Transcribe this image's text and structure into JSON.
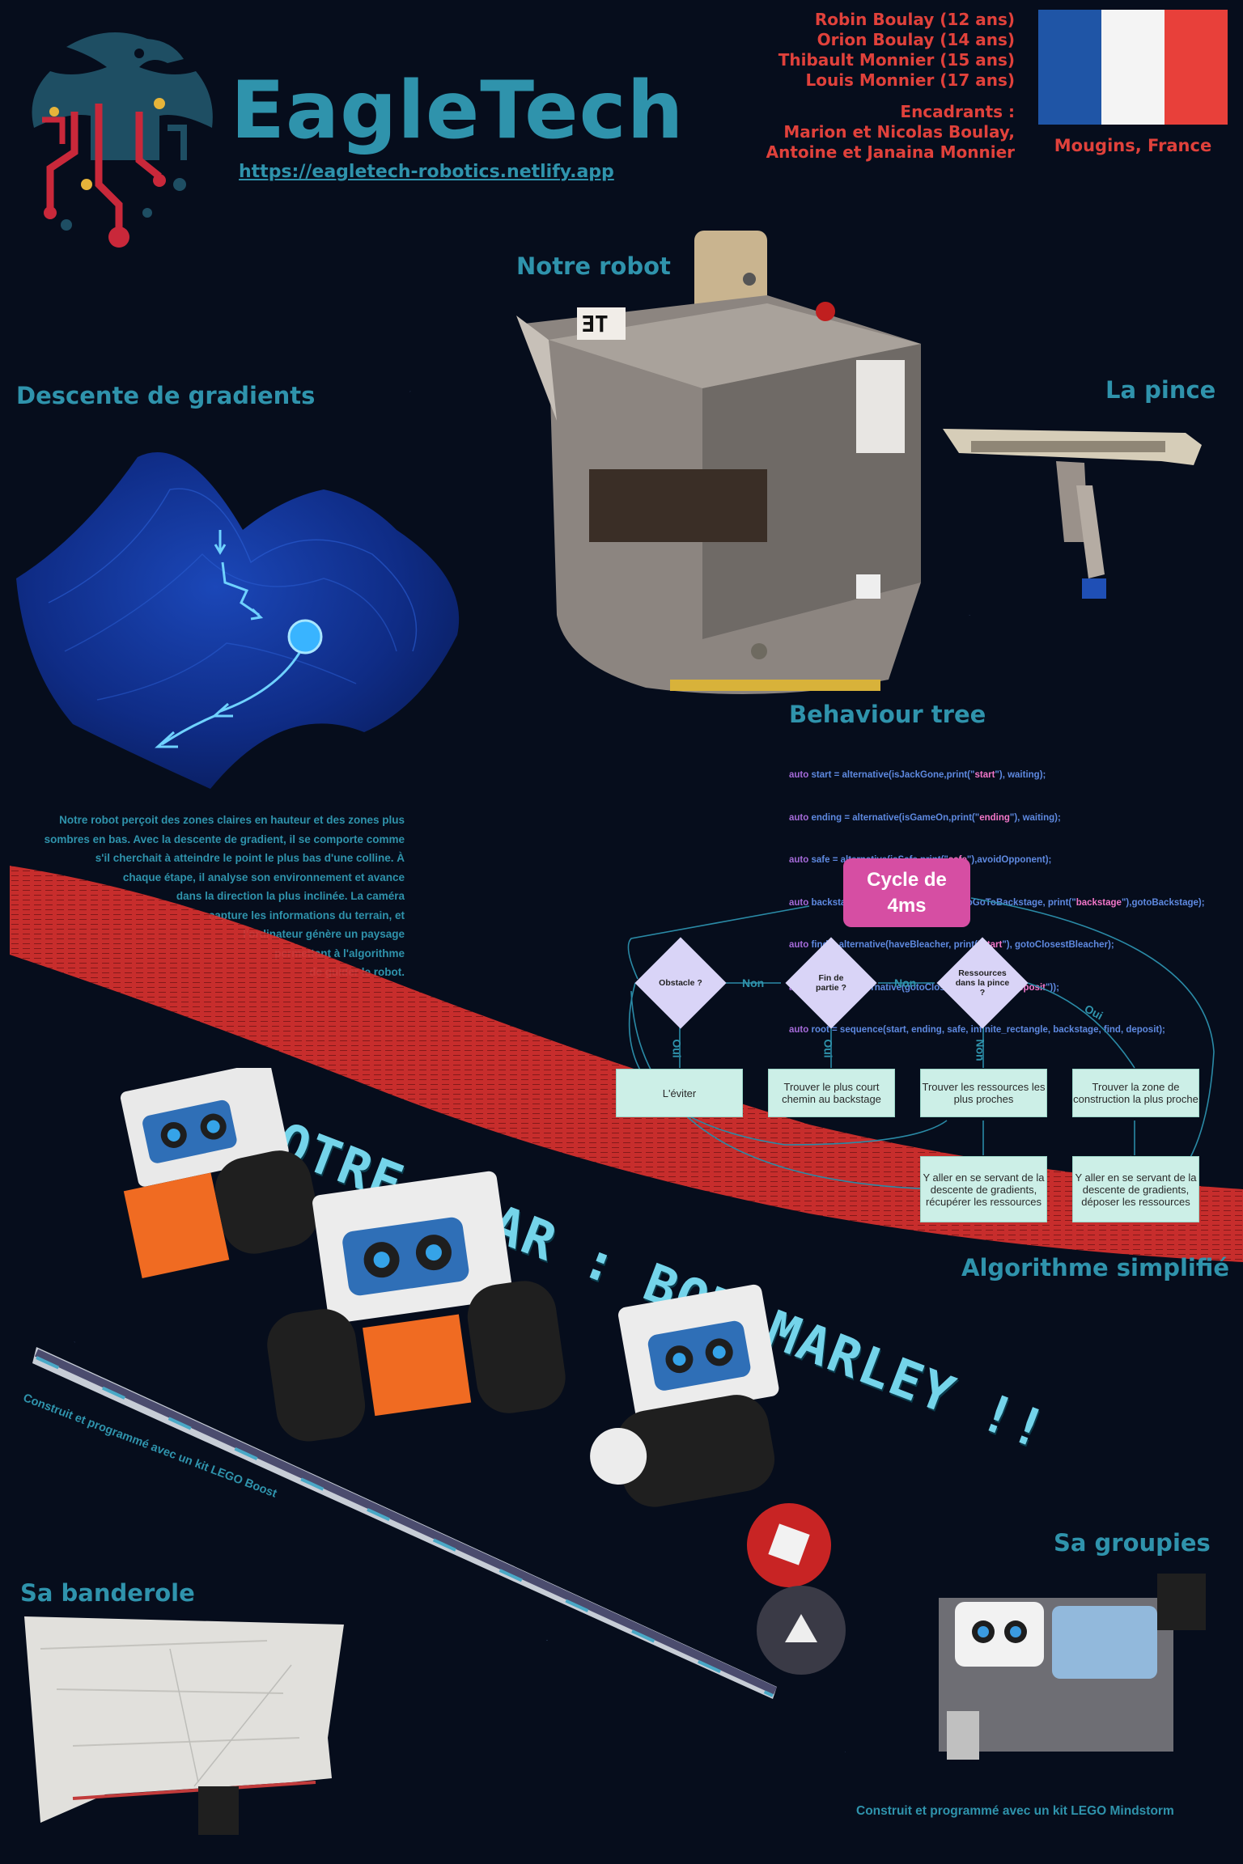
{
  "brand": {
    "name": "EagleTech",
    "website": "https://eagletech-robotics.netlify.app"
  },
  "team": {
    "members": [
      "Robin Boulay (12 ans)",
      "Orion Boulay (14 ans)",
      "Thibault Monnier (15 ans)",
      "Louis Monnier (17 ans)"
    ],
    "supervisors_title": "Encadrants :",
    "supervisors": [
      "Marion et Nicolas Boulay,",
      "Antoine et Janaina Monnier"
    ],
    "location": "Mougins, France"
  },
  "flag_colors": [
    "#1f55a6",
    "#f4f4f4",
    "#e8403a"
  ],
  "sections": {
    "robot": "Notre robot",
    "gradient": "Descente de gradients",
    "pince": "La pince",
    "behaviour": "Behaviour tree",
    "algo": "Algorithme simplifié",
    "groupies": "Sa groupies",
    "banderole": "Sa banderole"
  },
  "gradient_text": [
    "Notre robot perçoit des zones claires en hauteur et des zones plus",
    "sombres en bas. Avec la descente de gradient, il se comporte comme",
    "s'il cherchait à atteindre le point le plus bas d'une colline.  À",
    "chaque étape, il analyse son environnement et avance",
    "dans la direction la plus inclinée. La caméra",
    "capture les informations du terrain, et",
    "l'ordinateur génère un paysage",
    "permettant à l'algorithme",
    "de guider le robot."
  ],
  "code_lines": [
    {
      "kw": "auto",
      "a": " start = alternative(isJackGone,print(\"",
      "s": "start",
      "b": "\"), waiting);"
    },
    {
      "kw": "auto",
      "a": " ending = alternative(isGameOn,print(\"",
      "s": "ending",
      "b": "\"), waiting);"
    },
    {
      "kw": "auto",
      "a": " safe = alternative(isSafe,print(\"",
      "s": "safe",
      "b": "\"),avoidOpponent);"
    },
    {
      "kw": "auto",
      "a": " backstage = alternative(isNotTimeToGoToBackstage, print(\"",
      "s": "backstage",
      "b": "\"),gotoBackstage);"
    },
    {
      "kw": "auto",
      "a": " find = alternative(haveBleacher, print(\"",
      "s": "start",
      "b": "\"), gotoClosestBleacher);"
    },
    {
      "kw": "auto",
      "a": " deposit = alternative(gotoClosestArea, print(\"",
      "s": "deposit",
      "b": "\"));"
    },
    {
      "kw": "auto",
      "a": " root = sequence(start, ending, safe, infinite_rectangle, backstage, find, deposit);",
      "s": "",
      "b": ""
    }
  ],
  "flowchart": {
    "cycle": [
      "Cycle de",
      "4ms"
    ],
    "decisions": [
      "Obstacle ?",
      "Fin de partie ?",
      "Ressources dans la pince ?"
    ],
    "actions": [
      "L'éviter",
      "Trouver le plus court chemin au backstage",
      "Trouver les ressources les plus proches",
      "Trouver la zone de construction la plus proche",
      "Y aller en se servant de la descente de gradients, récupérer les ressources",
      "Y aller en se servant de la descente de gradients, déposer les ressources"
    ],
    "labels": {
      "yes": "Oui",
      "no": "Non"
    }
  },
  "star_banner": "NOTRE STAR : BOT  MARLEY !!",
  "captions": {
    "lego_boost": "Construit et programmé avec un kit LEGO Boost",
    "lego_mindstorm": "Construit et programmé avec un kit LEGO Mindstorm"
  }
}
